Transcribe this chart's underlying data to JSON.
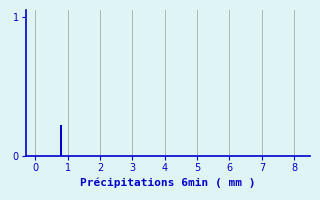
{
  "bar_x": [
    0.8
  ],
  "bar_height": [
    0.22
  ],
  "bar_width": 0.06,
  "bar_color": "#0000cc",
  "xlim": [
    -0.3,
    8.5
  ],
  "ylim": [
    0,
    1.05
  ],
  "xticks": [
    0,
    1,
    2,
    3,
    4,
    5,
    6,
    7,
    8
  ],
  "yticks": [
    0,
    1
  ],
  "xlabel": "Précipitations 6min ( mm )",
  "xlabel_color": "#0000cc",
  "xlabel_fontsize": 8,
  "tick_color": "#0000cc",
  "tick_fontsize": 7,
  "axis_color": "#0000cc",
  "background_color": "#dff4f4",
  "grid_color": "#aaaaaa",
  "grid_linewidth": 0.6,
  "figsize": [
    3.2,
    2.0
  ],
  "dpi": 100
}
